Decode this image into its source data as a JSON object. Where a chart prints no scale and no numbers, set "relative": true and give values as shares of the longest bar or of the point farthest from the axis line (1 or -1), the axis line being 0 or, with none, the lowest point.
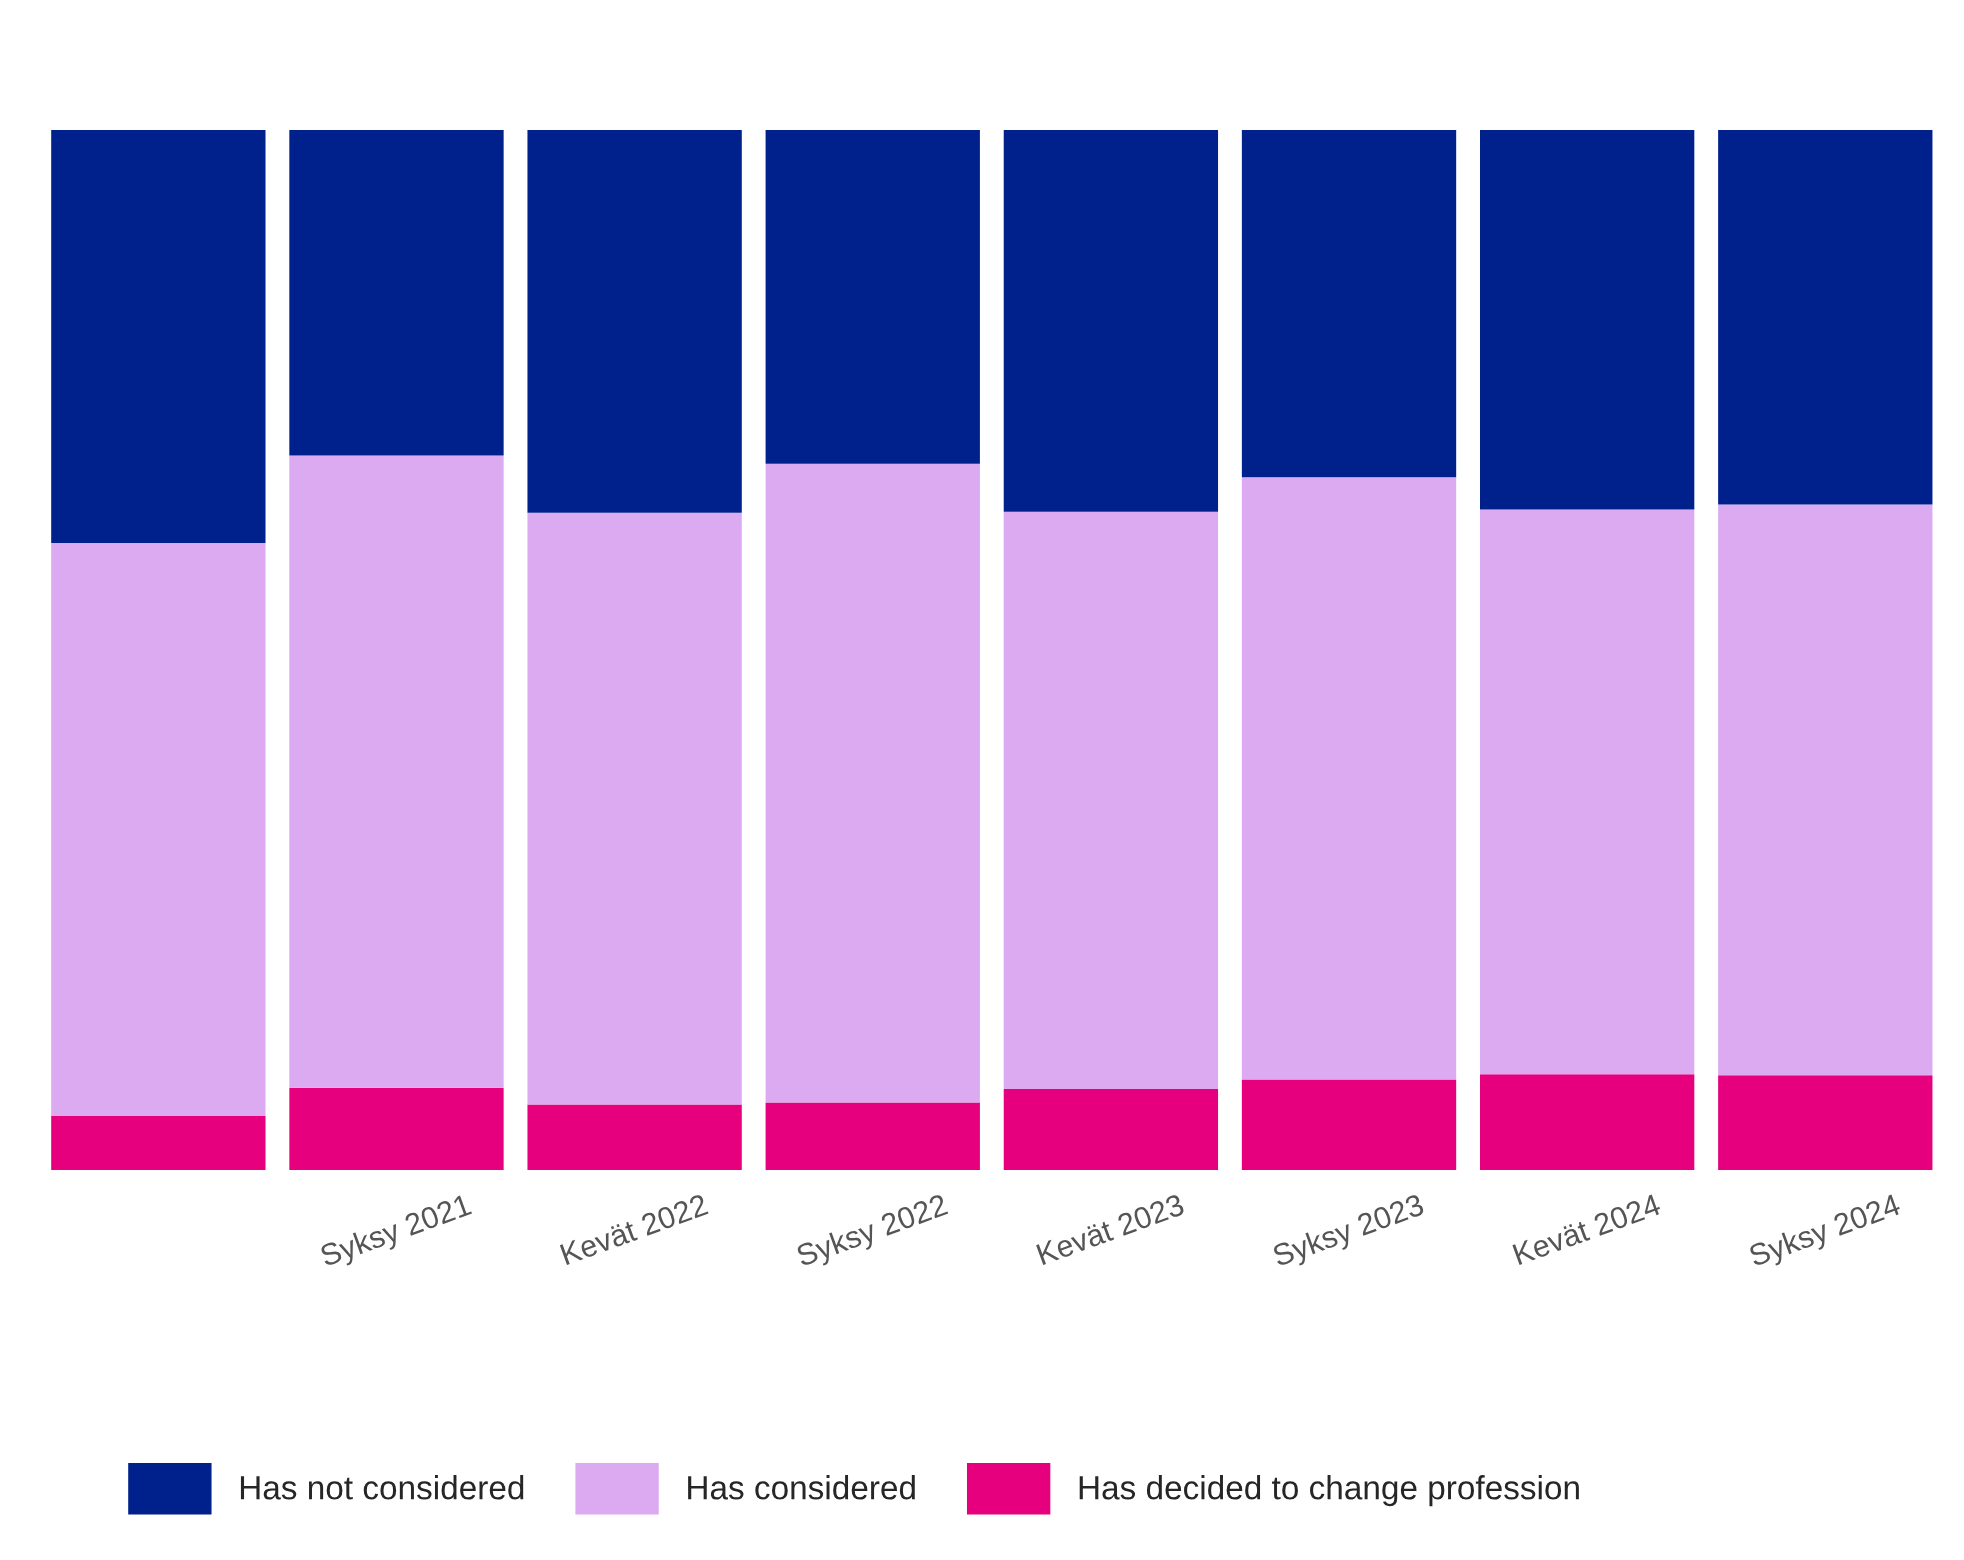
{
  "chart_data": {
    "type": "bar",
    "stacked": true,
    "relative": true,
    "legend": "bottom",
    "categories": [
      null,
      "Syksy 2021",
      "Kevät 2022",
      "Syksy 2022",
      "Kevät 2023",
      "Syksy 2023",
      "Kevät 2024",
      "Syksy 2024"
    ],
    "series": [
      {
        "name": "Has decided to change profession",
        "color": "#e6007e",
        "values": [
          0.052,
          0.079,
          0.063,
          0.065,
          0.078,
          0.087,
          0.092,
          0.091
        ]
      },
      {
        "name": "Has considered",
        "color": "#dcaaf0",
        "values": [
          0.551,
          0.608,
          0.569,
          0.614,
          0.555,
          0.579,
          0.543,
          0.549
        ]
      },
      {
        "name": "Has not considered",
        "color": "#00208c",
        "values": [
          0.397,
          0.313,
          0.368,
          0.321,
          0.367,
          0.334,
          0.365,
          0.36
        ]
      }
    ]
  }
}
